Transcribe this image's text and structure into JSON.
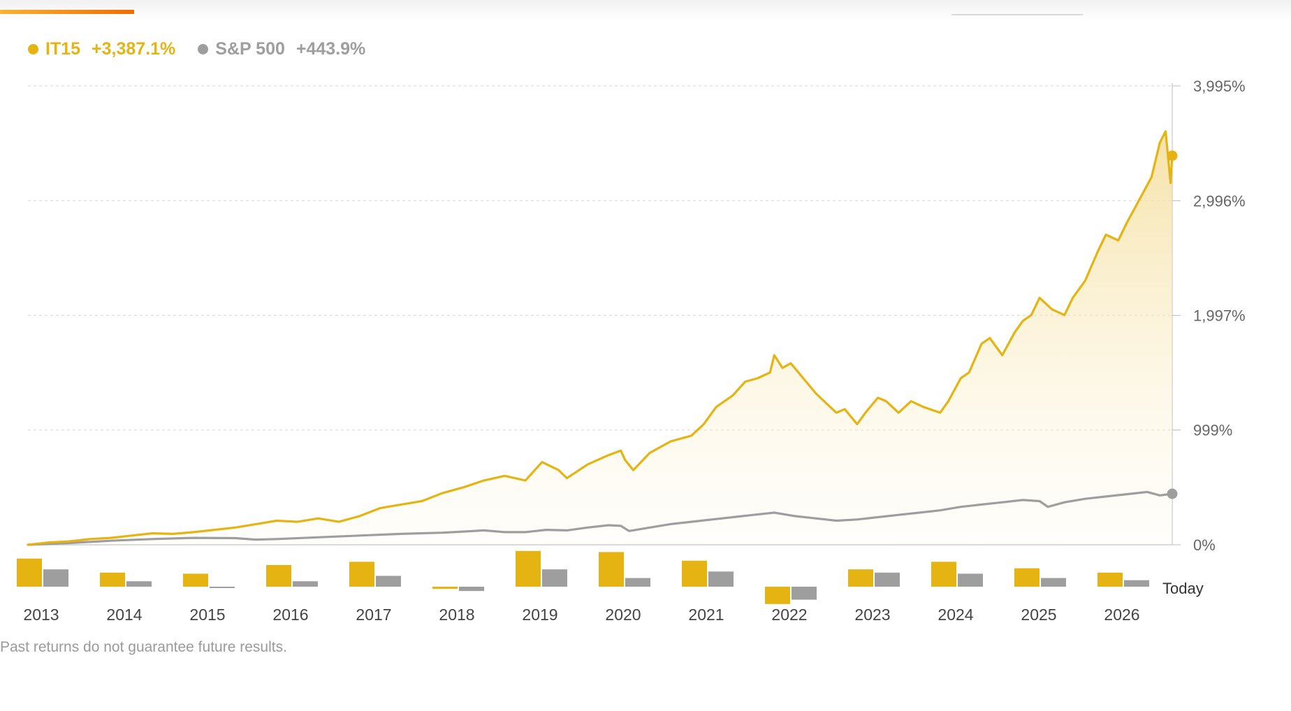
{
  "colors": {
    "it15": "#e6b412",
    "sp500": "#9e9e9e",
    "accent": "#ef6c00"
  },
  "legend": {
    "it15": {
      "name": "IT15",
      "value": "+3,387.1%"
    },
    "sp500": {
      "name": "S&P 500",
      "value": "+443.9%"
    }
  },
  "disclaimer": "Past returns do not guarantee future results.",
  "chart_data": {
    "type": "line",
    "grid": true,
    "area_fill": "IT15",
    "y_ticks": [
      "3,995%",
      "2,996%",
      "1,997%",
      "999%",
      "0%"
    ],
    "y_tick_values": [
      3995,
      2996,
      1997,
      999,
      0
    ],
    "ylim": [
      0,
      3995
    ],
    "x_ticks": [
      "2013",
      "2014",
      "2015",
      "2016",
      "2017",
      "2018",
      "2019",
      "2020",
      "2021",
      "2022",
      "2023",
      "2024",
      "2025",
      "2026"
    ],
    "end_label": "Today",
    "xlim": [
      2013.0,
      2026.8
    ],
    "series": [
      {
        "name": "IT15",
        "final_value": 3387.1,
        "points": [
          [
            2013.0,
            0
          ],
          [
            2013.25,
            20
          ],
          [
            2013.5,
            30
          ],
          [
            2013.75,
            50
          ],
          [
            2014.0,
            60
          ],
          [
            2014.25,
            80
          ],
          [
            2014.5,
            100
          ],
          [
            2014.75,
            95
          ],
          [
            2015.0,
            110
          ],
          [
            2015.25,
            130
          ],
          [
            2015.5,
            150
          ],
          [
            2015.75,
            180
          ],
          [
            2016.0,
            210
          ],
          [
            2016.25,
            200
          ],
          [
            2016.5,
            230
          ],
          [
            2016.75,
            200
          ],
          [
            2017.0,
            250
          ],
          [
            2017.25,
            320
          ],
          [
            2017.5,
            350
          ],
          [
            2017.75,
            380
          ],
          [
            2018.0,
            450
          ],
          [
            2018.25,
            500
          ],
          [
            2018.5,
            560
          ],
          [
            2018.75,
            600
          ],
          [
            2019.0,
            560
          ],
          [
            2019.2,
            720
          ],
          [
            2019.4,
            650
          ],
          [
            2019.5,
            580
          ],
          [
            2019.75,
            700
          ],
          [
            2020.0,
            780
          ],
          [
            2020.15,
            820
          ],
          [
            2020.2,
            740
          ],
          [
            2020.3,
            650
          ],
          [
            2020.5,
            800
          ],
          [
            2020.75,
            900
          ],
          [
            2021.0,
            950
          ],
          [
            2021.15,
            1050
          ],
          [
            2021.3,
            1200
          ],
          [
            2021.5,
            1300
          ],
          [
            2021.65,
            1420
          ],
          [
            2021.8,
            1450
          ],
          [
            2021.95,
            1500
          ],
          [
            2022.0,
            1650
          ],
          [
            2022.1,
            1540
          ],
          [
            2022.2,
            1580
          ],
          [
            2022.35,
            1450
          ],
          [
            2022.5,
            1320
          ],
          [
            2022.6,
            1250
          ],
          [
            2022.75,
            1150
          ],
          [
            2022.85,
            1180
          ],
          [
            2023.0,
            1050
          ],
          [
            2023.1,
            1150
          ],
          [
            2023.25,
            1280
          ],
          [
            2023.35,
            1250
          ],
          [
            2023.5,
            1150
          ],
          [
            2023.65,
            1250
          ],
          [
            2023.8,
            1200
          ],
          [
            2024.0,
            1150
          ],
          [
            2024.1,
            1250
          ],
          [
            2024.25,
            1450
          ],
          [
            2024.35,
            1500
          ],
          [
            2024.5,
            1750
          ],
          [
            2024.6,
            1800
          ],
          [
            2024.75,
            1650
          ],
          [
            2024.9,
            1850
          ],
          [
            2025.0,
            1950
          ],
          [
            2025.1,
            2000
          ],
          [
            2025.2,
            2150
          ],
          [
            2025.35,
            2050
          ],
          [
            2025.5,
            2000
          ],
          [
            2025.6,
            2150
          ],
          [
            2025.75,
            2300
          ],
          [
            2025.9,
            2550
          ],
          [
            2026.0,
            2700
          ],
          [
            2026.15,
            2650
          ],
          [
            2026.25,
            2800
          ],
          [
            2026.4,
            3000
          ],
          [
            2026.55,
            3200
          ],
          [
            2026.65,
            3500
          ],
          [
            2026.72,
            3600
          ],
          [
            2026.78,
            3150
          ],
          [
            2026.8,
            3387.1
          ]
        ]
      },
      {
        "name": "S&P 500",
        "final_value": 443.9,
        "points": [
          [
            2013.0,
            0
          ],
          [
            2013.5,
            15
          ],
          [
            2014.0,
            35
          ],
          [
            2014.5,
            50
          ],
          [
            2015.0,
            60
          ],
          [
            2015.5,
            58
          ],
          [
            2015.75,
            45
          ],
          [
            2016.0,
            50
          ],
          [
            2016.5,
            65
          ],
          [
            2017.0,
            80
          ],
          [
            2017.5,
            95
          ],
          [
            2018.0,
            105
          ],
          [
            2018.25,
            115
          ],
          [
            2018.5,
            125
          ],
          [
            2018.75,
            110
          ],
          [
            2019.0,
            110
          ],
          [
            2019.25,
            130
          ],
          [
            2019.5,
            125
          ],
          [
            2019.75,
            150
          ],
          [
            2020.0,
            170
          ],
          [
            2020.15,
            165
          ],
          [
            2020.25,
            120
          ],
          [
            2020.5,
            150
          ],
          [
            2020.75,
            180
          ],
          [
            2021.0,
            200
          ],
          [
            2021.25,
            220
          ],
          [
            2021.5,
            240
          ],
          [
            2021.75,
            260
          ],
          [
            2022.0,
            280
          ],
          [
            2022.25,
            250
          ],
          [
            2022.5,
            230
          ],
          [
            2022.75,
            210
          ],
          [
            2023.0,
            220
          ],
          [
            2023.25,
            240
          ],
          [
            2023.5,
            260
          ],
          [
            2023.75,
            280
          ],
          [
            2024.0,
            300
          ],
          [
            2024.25,
            330
          ],
          [
            2024.5,
            350
          ],
          [
            2024.75,
            370
          ],
          [
            2025.0,
            390
          ],
          [
            2025.2,
            380
          ],
          [
            2025.3,
            330
          ],
          [
            2025.5,
            370
          ],
          [
            2025.75,
            400
          ],
          [
            2026.0,
            420
          ],
          [
            2026.25,
            440
          ],
          [
            2026.5,
            460
          ],
          [
            2026.65,
            430
          ],
          [
            2026.8,
            443.9
          ]
        ]
      }
    ],
    "annual_returns": {
      "years": [
        "2013",
        "2014",
        "2015",
        "2016",
        "2017",
        "2018",
        "2019",
        "2020",
        "2021",
        "2022",
        "2023",
        "2024",
        "2025",
        "2026"
      ],
      "IT15": [
        26,
        13,
        12,
        20,
        23,
        -2,
        33,
        32,
        24,
        -16,
        16,
        23,
        17,
        13
      ],
      "S&P 500": [
        16,
        5,
        -1,
        5,
        10,
        -4,
        16,
        8,
        14,
        -12,
        13,
        12,
        8,
        6
      ]
    }
  }
}
